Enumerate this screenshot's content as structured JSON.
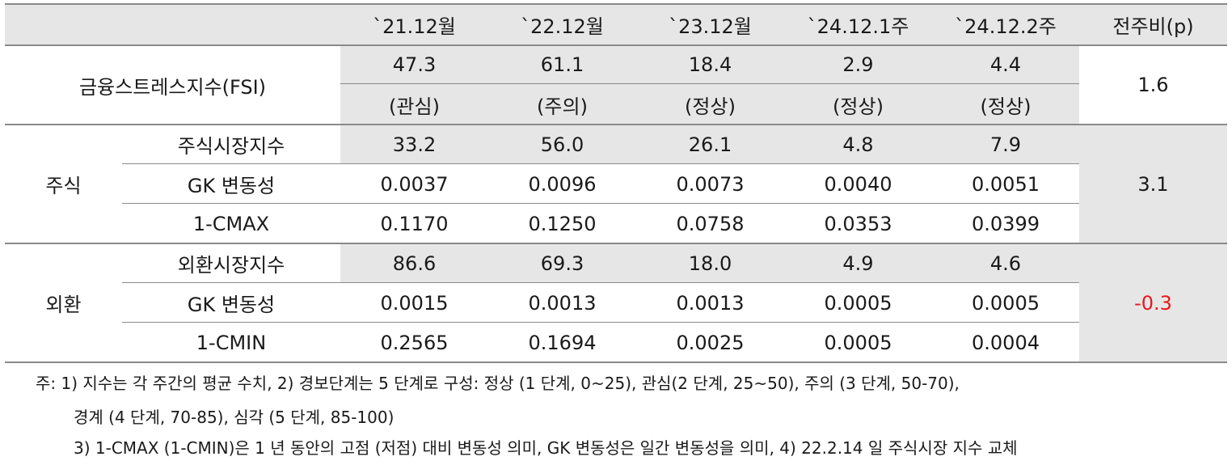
{
  "table": {
    "headers": [
      "`21.12월",
      "`22.12월",
      "`23.12월",
      "`24.12.1주",
      "`24.12.2주",
      "전주비(p)"
    ],
    "fsi": {
      "label": "금융스트레스지수(FSI)",
      "values": [
        "47.3",
        "61.1",
        "18.4",
        "2.9",
        "4.4"
      ],
      "status": [
        "(관심)",
        "(주의)",
        "(정상)",
        "(정상)",
        "(정상)"
      ],
      "change": "1.6"
    },
    "stock": {
      "group": "주식",
      "change": "3.1",
      "rows": [
        {
          "label": "주식시장지수",
          "values": [
            "33.2",
            "56.0",
            "26.1",
            "4.8",
            "7.9"
          ]
        },
        {
          "label": "GK 변동성",
          "values": [
            "0.0037",
            "0.0096",
            "0.0073",
            "0.0040",
            "0.0051"
          ]
        },
        {
          "label": "1-CMAX",
          "values": [
            "0.1170",
            "0.1250",
            "0.0758",
            "0.0353",
            "0.0399"
          ]
        }
      ]
    },
    "fx": {
      "group": "외환",
      "change": "-0.3",
      "change_color": "#e8191f",
      "rows": [
        {
          "label": "외환시장지수",
          "values": [
            "86.6",
            "69.3",
            "18.0",
            "4.9",
            "4.6"
          ]
        },
        {
          "label": "GK 변동성",
          "values": [
            "0.0015",
            "0.0013",
            "0.0013",
            "0.0005",
            "0.0005"
          ]
        },
        {
          "label": "1-CMIN",
          "values": [
            "0.2565",
            "0.1694",
            "0.0025",
            "0.0005",
            "0.0004"
          ]
        }
      ]
    }
  },
  "notes": {
    "line1": "주: 1) 지수는 각 주간의 평균 수치, 2) 경보단계는 5 단계로 구성: 정상 (1 단계, 0~25), 관심(2 단계, 25~50), 주의 (3 단계, 50-70),",
    "line2": "경계 (4 단계, 70-85), 심각 (5 단계, 85-100)",
    "line3": "3) 1-CMAX (1-CMIN)은 1 년 동안의 고점 (저점) 대비 변동성 의미, GK 변동성은 일간 변동성을 의미, 4) 22.2.14 일 주식시장 지수 교체"
  }
}
